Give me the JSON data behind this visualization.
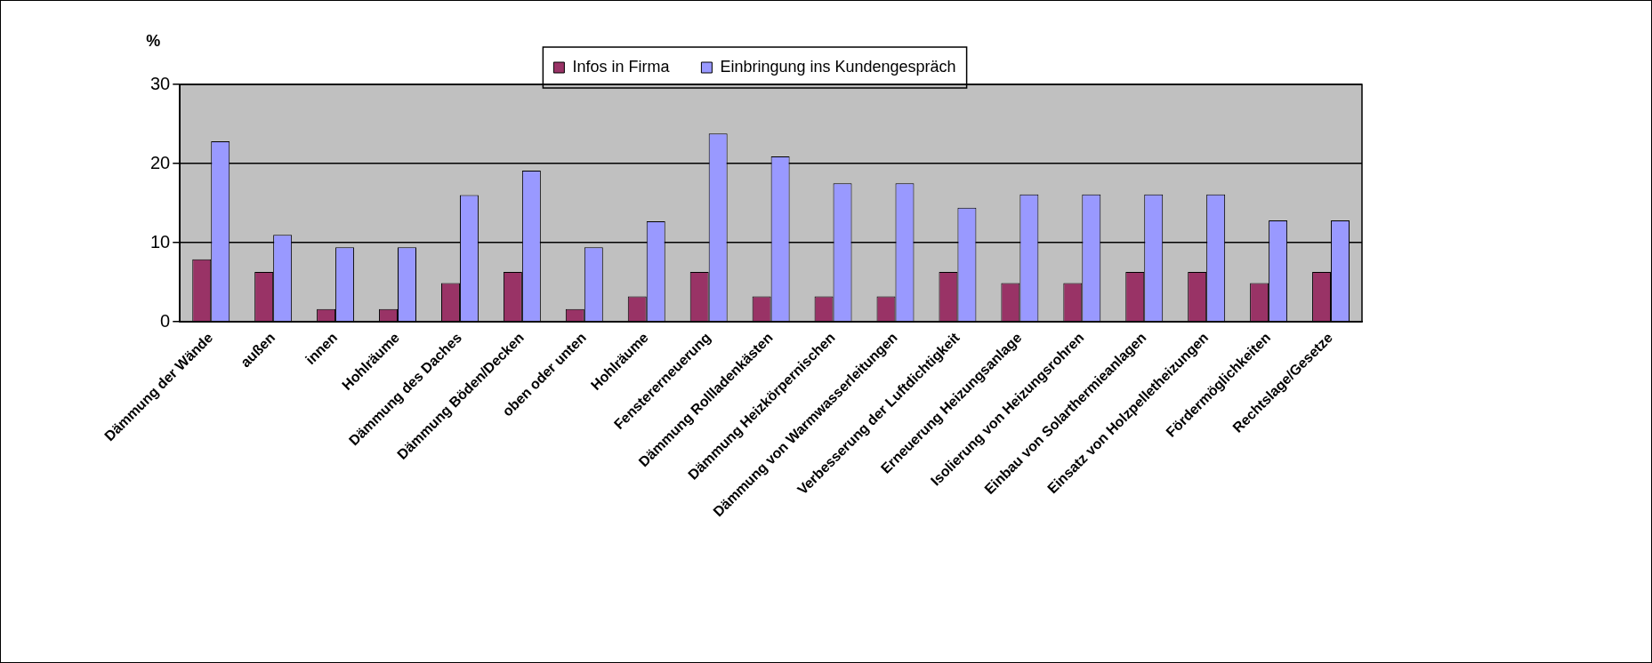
{
  "chart_data": {
    "type": "bar",
    "ylabel": "%",
    "categories": [
      "Dämmung der Wände",
      "außen",
      "innen",
      "Hohlräume",
      "Dämmung des Daches",
      "Dämmung Böden/Decken",
      "oben oder unten",
      "Hohlräume",
      "Fenstererneuerung",
      "Dämmung Rollladenkästen",
      "Dämmung Heizkörpernischen",
      "Dämmung von Warmwasserleitungen",
      "Verbesserung der Luftdichtigkeit",
      "Erneuerung Heizungsanlage",
      "Isolierung von Heizungsrohren",
      "Einbau von Solarthermieanlagen",
      "Einsatz von Holzpelletheizungen",
      "Fördermöglichkeiten",
      "Rechtslage/Gesetze"
    ],
    "series": [
      {
        "name": "Infos in Firma",
        "color": "#993366",
        "values": [
          7.9,
          6.3,
          1.6,
          1.6,
          4.9,
          6.3,
          1.6,
          3.2,
          6.3,
          3.2,
          3.2,
          3.2,
          6.3,
          4.9,
          4.9,
          6.3,
          6.3,
          4.9,
          6.3
        ]
      },
      {
        "name": "Einbringung ins Kundengespräch",
        "color": "#9999ff",
        "values": [
          22.8,
          11.0,
          9.4,
          9.4,
          16.0,
          19.1,
          9.4,
          12.7,
          23.8,
          20.9,
          17.5,
          17.5,
          14.4,
          16.1,
          16.1,
          16.1,
          16.1,
          12.8,
          12.8
        ]
      }
    ],
    "ylim": [
      0,
      30
    ],
    "yticks": [
      0,
      10,
      20,
      30
    ],
    "grid": "y",
    "legend": "top"
  }
}
